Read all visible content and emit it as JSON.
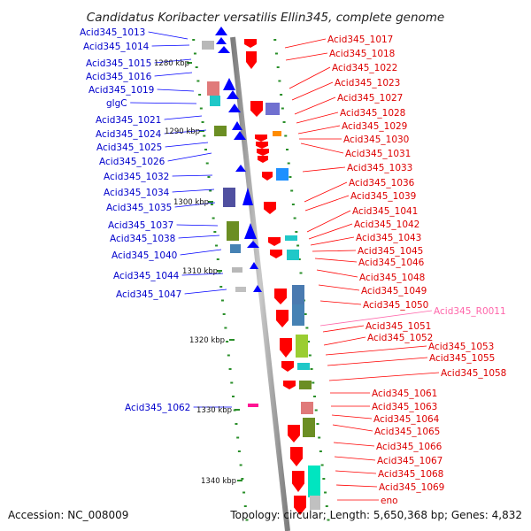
{
  "title": "Candidatus Koribacter versatilis Ellin345, complete genome",
  "footer": {
    "accession": "Accession: NC_008009",
    "topology": "Topology: circular; Length: 5,650,368 bp; Genes: 4,832"
  },
  "scale_marks": [
    "1280 kbp",
    "1290 kbp",
    "1300 kbp",
    "1310 kbp",
    "1320 kbp",
    "1330 kbp",
    "1340 kbp"
  ],
  "genes_left": [
    "Acid345_1013",
    "Acid345_1014",
    "Acid345_1015",
    "Acid345_1016",
    "Acid345_1019",
    "glgC",
    "Acid345_1021",
    "Acid345_1024",
    "Acid345_1025",
    "Acid345_1026",
    "Acid345_1032",
    "Acid345_1034",
    "Acid345_1035",
    "Acid345_1037",
    "Acid345_1038",
    "Acid345_1040",
    "Acid345_1044",
    "Acid345_1047",
    "Acid345_1062"
  ],
  "genes_right": [
    "Acid345_1017",
    "Acid345_1018",
    "Acid345_1022",
    "Acid345_1023",
    "Acid345_1027",
    "Acid345_1028",
    "Acid345_1029",
    "Acid345_1030",
    "Acid345_1031",
    "Acid345_1033",
    "Acid345_1036",
    "Acid345_1039",
    "Acid345_1041",
    "Acid345_1042",
    "Acid345_1043",
    "Acid345_1045",
    "Acid345_1046",
    "Acid345_1048",
    "Acid345_1049",
    "Acid345_1050",
    "Acid345_R0011",
    "Acid345_1051",
    "Acid345_1052",
    "Acid345_1053",
    "Acid345_1055",
    "Acid345_1058",
    "Acid345_1061",
    "Acid345_1063",
    "Acid345_1064",
    "Acid345_1065",
    "Acid345_1066",
    "Acid345_1067",
    "Acid345_1068",
    "Acid345_1069",
    "eno"
  ],
  "colors": {
    "forward_strand": "#0000ff",
    "reverse_strand": "#ff0000",
    "rna": "#ff66aa",
    "axis": "#9a9a9a",
    "tick": "#2a8f2a"
  }
}
